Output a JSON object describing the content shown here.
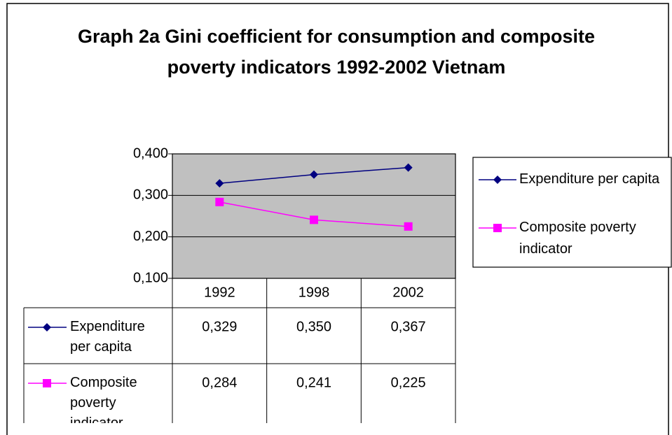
{
  "chart_data": {
    "type": "line",
    "title": "Graph 2a Gini coefficient for consumption and composite poverty indicators 1992-2002 Vietnam",
    "categories": [
      "1992",
      "1998",
      "2002"
    ],
    "series": [
      {
        "name": "Expenditure per capita",
        "color": "#000080",
        "marker": "diamond",
        "values": [
          0.329,
          0.35,
          0.367
        ],
        "value_labels": [
          "0,329",
          "0,350",
          "0,367"
        ]
      },
      {
        "name": "Composite poverty indicator",
        "color": "#ff00ff",
        "marker": "square",
        "values": [
          0.284,
          0.241,
          0.225
        ],
        "value_labels": [
          "0,284",
          "0,241",
          "0,225"
        ]
      }
    ],
    "ylim": [
      0.1,
      0.4
    ],
    "yticks": [
      {
        "value": 0.1,
        "label": "0,100"
      },
      {
        "value": 0.2,
        "label": "0,200"
      },
      {
        "value": 0.3,
        "label": "0,300"
      },
      {
        "value": 0.4,
        "label": "0,400"
      }
    ],
    "grid": true,
    "plot_background": "#c0c0c0",
    "legend": "right",
    "data_table": true
  }
}
